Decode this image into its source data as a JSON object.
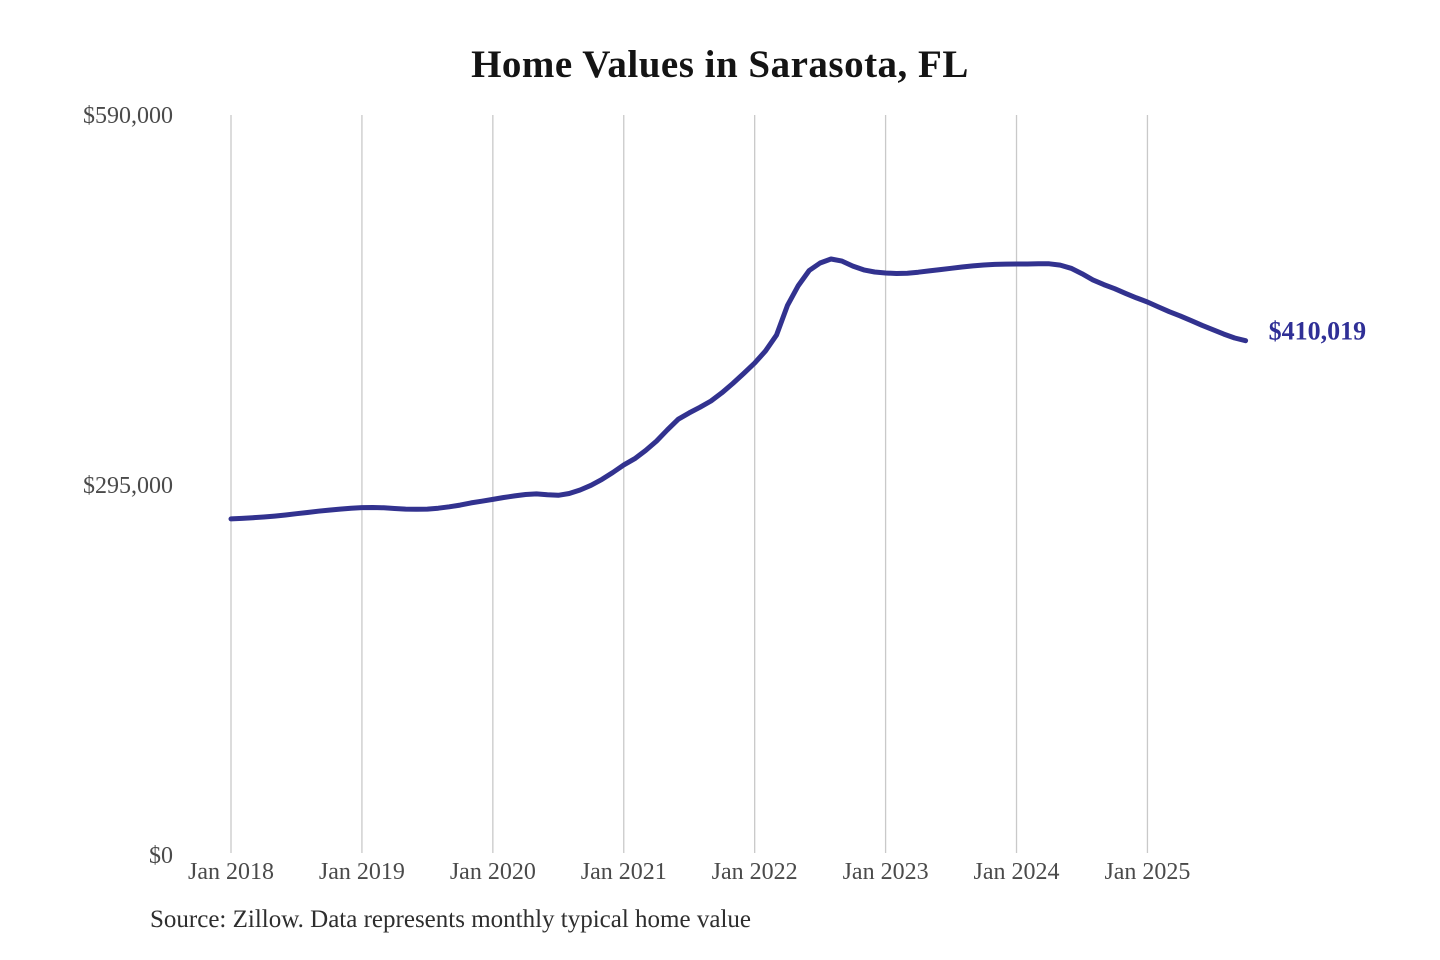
{
  "title": "Home Values in Sarasota, FL",
  "source_note": "Source: Zillow. Data represents monthly typical home value",
  "chart_data": {
    "type": "line",
    "title": "Home Values in Sarasota, FL",
    "xlabel": "",
    "ylabel": "",
    "x_start": "Jan 2018",
    "x_end": "Oct 2025",
    "x_interval": "monthly",
    "series": [
      {
        "name": "Typical home value",
        "values": [
          268000,
          268400,
          268900,
          269500,
          270200,
          271100,
          272100,
          273100,
          274100,
          275000,
          275800,
          276500,
          277000,
          277100,
          276800,
          276300,
          275800,
          275600,
          275800,
          276500,
          277600,
          279000,
          280700,
          282100,
          283500,
          285000,
          286300,
          287400,
          287900,
          287200,
          286800,
          288200,
          291000,
          294800,
          299500,
          305000,
          311000,
          316000,
          322500,
          330000,
          339000,
          347500,
          352500,
          357000,
          362000,
          368500,
          376000,
          384000,
          392300,
          402000,
          414500,
          438000,
          454000,
          466000,
          472000,
          475200,
          473500,
          469500,
          466500,
          464800,
          464000,
          463600,
          463900,
          464700,
          465700,
          466700,
          467800,
          468800,
          469700,
          470400,
          470900,
          471100,
          471200,
          471200,
          471400,
          471400,
          470300,
          467800,
          463500,
          458500,
          454800,
          451500,
          447800,
          444200,
          440900,
          437000,
          433200,
          429800,
          426100,
          422300,
          418800,
          415300,
          412200,
          410019
        ]
      }
    ],
    "xticks": [
      "Jan 2018",
      "Jan 2019",
      "Jan 2020",
      "Jan 2021",
      "Jan 2022",
      "Jan 2023",
      "Jan 2024",
      "Jan 2025"
    ],
    "yticks": [
      {
        "label": "$590,000",
        "value": 590000
      },
      {
        "label": "$295,000",
        "value": 295000
      },
      {
        "label": "$0",
        "value": 0
      }
    ],
    "ylim": [
      0,
      590000
    ],
    "grid": "vertical-only",
    "legend": "none",
    "end_label": "$410,019",
    "latest_value": 410019,
    "line_color": "#32328f",
    "end_label_color": "#2f2f96",
    "grid_color": "#c9c9c9",
    "tick_color": "#4a4a4a"
  }
}
